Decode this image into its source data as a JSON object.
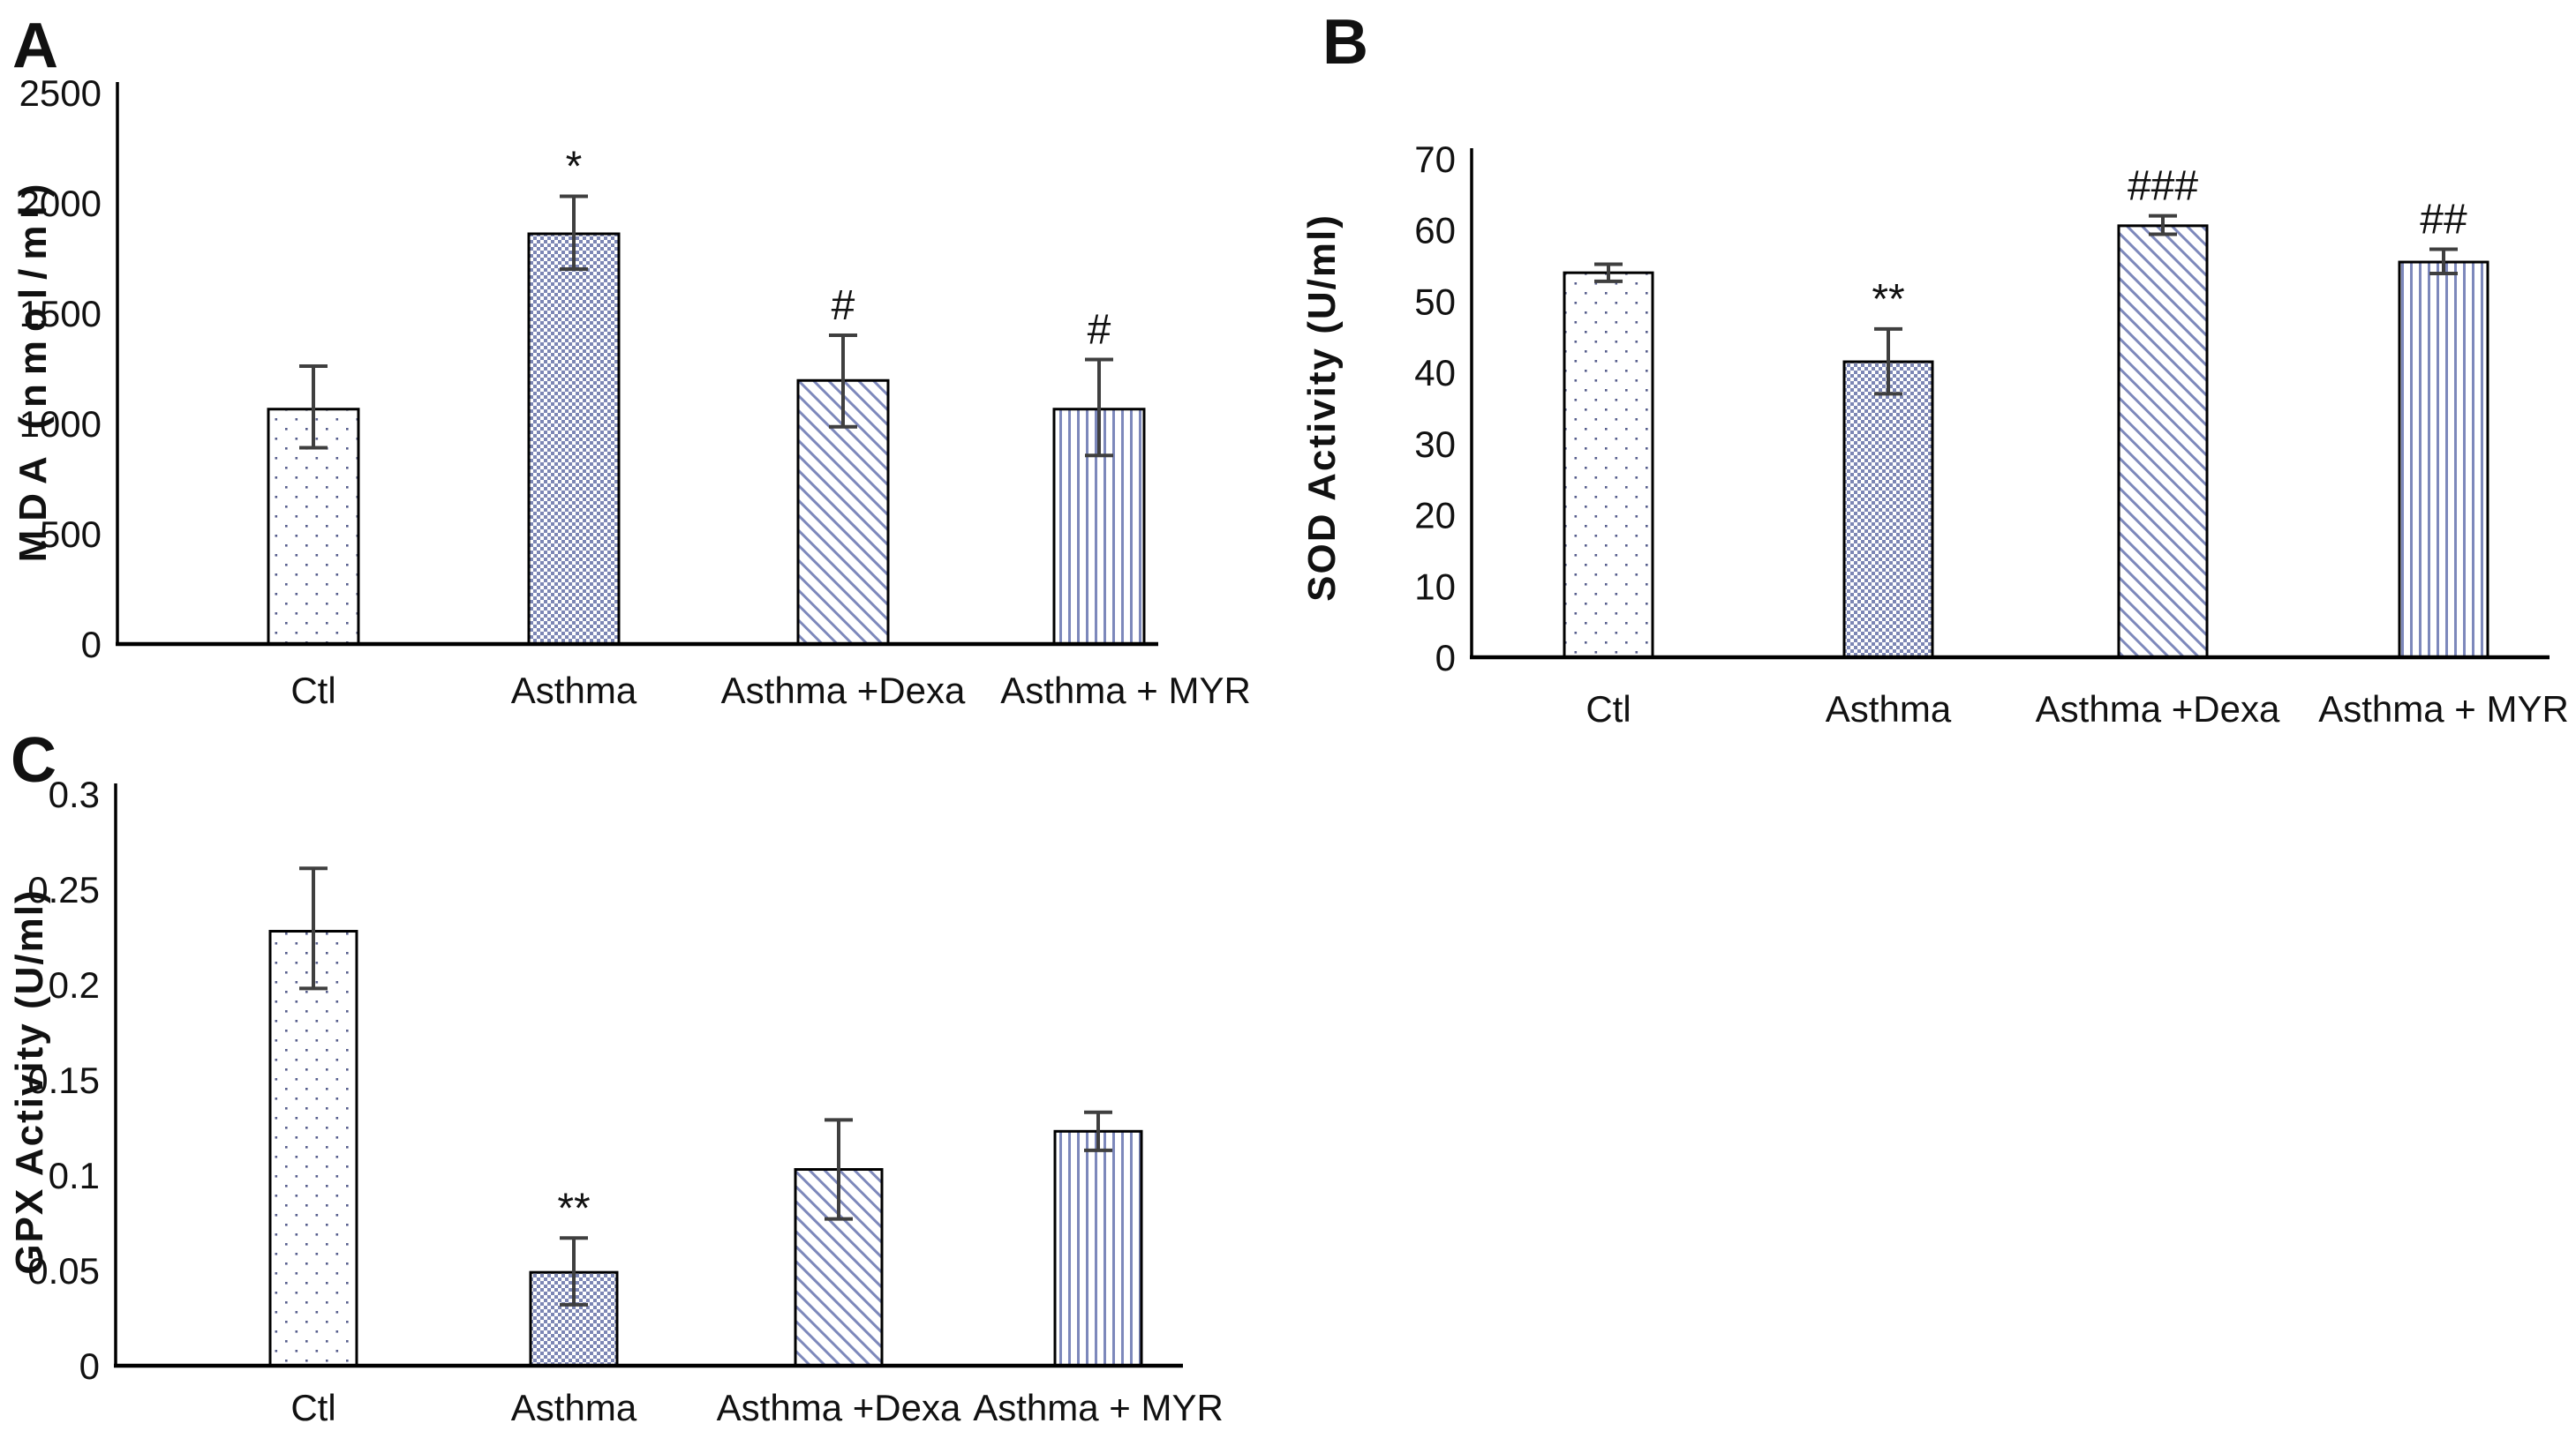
{
  "figure": {
    "background": "#ffffff",
    "panels": [
      {
        "letter": "A"
      },
      {
        "letter": "B"
      },
      {
        "letter": "C"
      }
    ]
  },
  "style": {
    "bar_outline_color": "#000000",
    "axis_color": "#000000",
    "error_bar_color": "#3f3f3f",
    "pattern_blue": "#7c86b4",
    "sparse_dot_color": "#565e8c",
    "stripe_color": "#7d88bb",
    "annotation_color": "#2e2e2e",
    "text_color": "#111111"
  },
  "chart_data": [
    {
      "panel": "A",
      "type": "bar",
      "title": "",
      "xlabel": "",
      "ylabel": "MDA (nmol/ml)",
      "categories": [
        "Ctl",
        "Asthma",
        "Asthma +Dexa",
        "Asthma + MYR"
      ],
      "values": [
        1065,
        1860,
        1195,
        1065
      ],
      "error_up": [
        195,
        170,
        205,
        225
      ],
      "error_down": [
        175,
        160,
        210,
        210
      ],
      "annotations": [
        "",
        "*",
        "#",
        "#"
      ],
      "ylim": [
        0,
        2500
      ],
      "grid": false,
      "legend_position": "none",
      "bar_patterns": [
        "sparse-dots",
        "checker",
        "diagonal-stripes",
        "vertical-stripes"
      ],
      "yticks": [
        {
          "label": "0",
          "value": 0
        },
        {
          "label": "500",
          "value": 500
        },
        {
          "label": "1000",
          "value": 1000
        },
        {
          "label": "1500",
          "value": 1500
        },
        {
          "label": "2000",
          "value": 2000
        },
        {
          "label": "2500",
          "value": 2500
        }
      ]
    },
    {
      "panel": "B",
      "type": "bar",
      "title": "",
      "xlabel": "",
      "ylabel": "SOD Activity (U/ml)",
      "categories": [
        "Ctl",
        "Asthma",
        "Asthma +Dexa",
        "Asthma + MYR"
      ],
      "values": [
        54,
        41.5,
        60.6,
        55.5
      ],
      "error_up": [
        1.2,
        4.6,
        1.4,
        1.8
      ],
      "error_down": [
        1.2,
        4.5,
        1.2,
        1.6
      ],
      "annotations": [
        "",
        "**",
        "###",
        "##"
      ],
      "ylim": [
        0,
        70
      ],
      "grid": false,
      "legend_position": "none",
      "bar_patterns": [
        "sparse-dots",
        "checker",
        "diagonal-stripes",
        "vertical-stripes"
      ],
      "yticks": [
        {
          "label": "0",
          "value": 0
        },
        {
          "label": "10",
          "value": 10
        },
        {
          "label": "20",
          "value": 20
        },
        {
          "label": "30",
          "value": 30
        },
        {
          "label": "40",
          "value": 40
        },
        {
          "label": "50",
          "value": 50
        },
        {
          "label": "60",
          "value": 60
        },
        {
          "label": "70",
          "value": 70
        }
      ]
    },
    {
      "panel": "C",
      "type": "bar",
      "title": "",
      "xlabel": "",
      "ylabel": "GPX Activity (U/ml)",
      "categories": [
        "Ctl",
        "Asthma",
        "Asthma +Dexa",
        "Asthma + MYR"
      ],
      "values": [
        0.228,
        0.049,
        0.103,
        0.123
      ],
      "error_up": [
        0.033,
        0.018,
        0.026,
        0.01
      ],
      "error_down": [
        0.03,
        0.017,
        0.026,
        0.01
      ],
      "annotations": [
        "",
        "**",
        "",
        ""
      ],
      "ylim": [
        0,
        0.3
      ],
      "grid": false,
      "legend_position": "none",
      "bar_patterns": [
        "sparse-dots",
        "checker",
        "diagonal-stripes",
        "vertical-stripes"
      ],
      "yticks": [
        {
          "label": "0",
          "value": 0
        },
        {
          "label": "0.05",
          "value": 0.05
        },
        {
          "label": "0.1",
          "value": 0.1
        },
        {
          "label": "0.15",
          "value": 0.15
        },
        {
          "label": "0.2",
          "value": 0.2
        },
        {
          "label": "0.25",
          "value": 0.25
        },
        {
          "label": "0.3",
          "value": 0.3
        }
      ]
    }
  ]
}
